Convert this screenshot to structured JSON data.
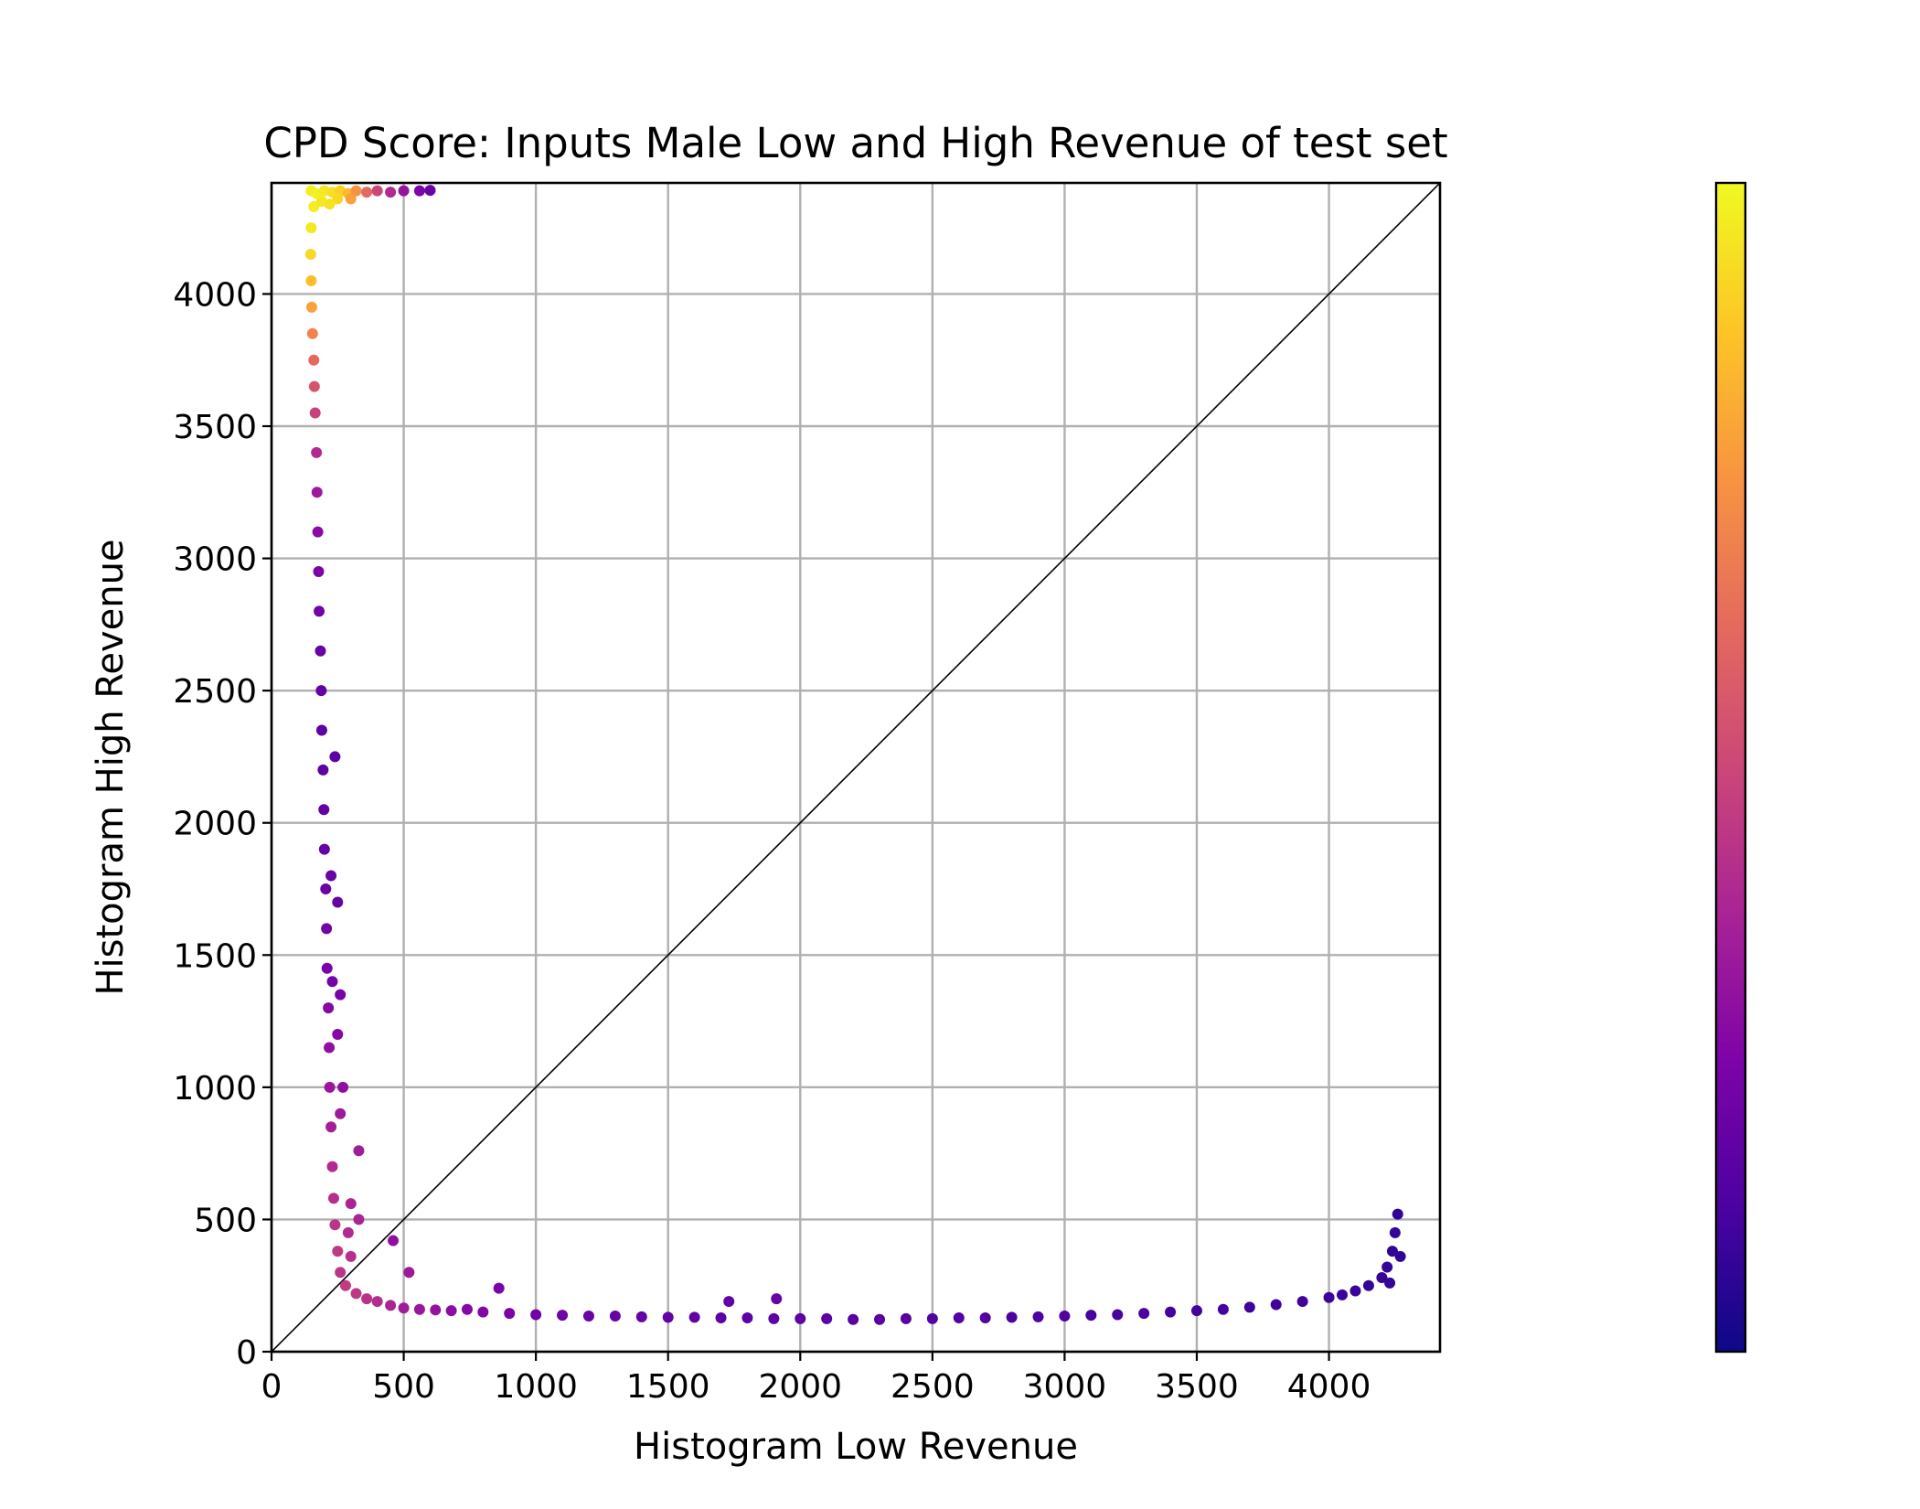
{
  "chart_data": {
    "type": "scatter",
    "title": "CPD Score: Inputs Male Low and High Revenue of test set",
    "xlabel": "Histogram Low Revenue",
    "ylabel": "Histogram High Revenue",
    "xlim": [
      0,
      4420
    ],
    "ylim": [
      0,
      4420
    ],
    "xticks": [
      0,
      500,
      1000,
      1500,
      2000,
      2500,
      3000,
      3500,
      4000
    ],
    "yticks": [
      0,
      500,
      1000,
      1500,
      2000,
      2500,
      3000,
      3500,
      4000
    ],
    "grid": true,
    "reference_line": {
      "x": [
        0,
        4420
      ],
      "y": [
        0,
        4420
      ],
      "color": "#000000"
    },
    "colormap": "plasma",
    "colorbar": true,
    "series": [
      {
        "points": [
          {
            "x": 150,
            "y": 4390,
            "c": 0.97
          },
          {
            "x": 170,
            "y": 4380,
            "c": 0.98
          },
          {
            "x": 200,
            "y": 4390,
            "c": 0.96
          },
          {
            "x": 230,
            "y": 4385,
            "c": 0.94
          },
          {
            "x": 260,
            "y": 4390,
            "c": 0.9
          },
          {
            "x": 290,
            "y": 4380,
            "c": 0.84
          },
          {
            "x": 320,
            "y": 4390,
            "c": 0.74
          },
          {
            "x": 360,
            "y": 4385,
            "c": 0.62
          },
          {
            "x": 400,
            "y": 4390,
            "c": 0.5
          },
          {
            "x": 450,
            "y": 4385,
            "c": 0.4
          },
          {
            "x": 500,
            "y": 4390,
            "c": 0.32
          },
          {
            "x": 560,
            "y": 4390,
            "c": 0.25
          },
          {
            "x": 600,
            "y": 4392,
            "c": 0.2
          },
          {
            "x": 160,
            "y": 4330,
            "c": 0.97
          },
          {
            "x": 190,
            "y": 4350,
            "c": 0.96
          },
          {
            "x": 250,
            "y": 4360,
            "c": 0.92
          },
          {
            "x": 300,
            "y": 4360,
            "c": 0.78
          },
          {
            "x": 220,
            "y": 4340,
            "c": 0.95
          },
          {
            "x": 150,
            "y": 4250,
            "c": 0.96
          },
          {
            "x": 148,
            "y": 4150,
            "c": 0.92
          },
          {
            "x": 150,
            "y": 4050,
            "c": 0.86
          },
          {
            "x": 152,
            "y": 3950,
            "c": 0.78
          },
          {
            "x": 155,
            "y": 3850,
            "c": 0.7
          },
          {
            "x": 160,
            "y": 3750,
            "c": 0.62
          },
          {
            "x": 162,
            "y": 3650,
            "c": 0.55
          },
          {
            "x": 165,
            "y": 3550,
            "c": 0.48
          },
          {
            "x": 170,
            "y": 3400,
            "c": 0.4
          },
          {
            "x": 172,
            "y": 3250,
            "c": 0.34
          },
          {
            "x": 175,
            "y": 3100,
            "c": 0.28
          },
          {
            "x": 178,
            "y": 2950,
            "c": 0.24
          },
          {
            "x": 180,
            "y": 2800,
            "c": 0.21
          },
          {
            "x": 185,
            "y": 2650,
            "c": 0.19
          },
          {
            "x": 188,
            "y": 2500,
            "c": 0.18
          },
          {
            "x": 190,
            "y": 2350,
            "c": 0.17
          },
          {
            "x": 195,
            "y": 2200,
            "c": 0.17
          },
          {
            "x": 198,
            "y": 2050,
            "c": 0.18
          },
          {
            "x": 200,
            "y": 1900,
            "c": 0.19
          },
          {
            "x": 205,
            "y": 1750,
            "c": 0.2
          },
          {
            "x": 208,
            "y": 1600,
            "c": 0.22
          },
          {
            "x": 210,
            "y": 1450,
            "c": 0.24
          },
          {
            "x": 215,
            "y": 1300,
            "c": 0.27
          },
          {
            "x": 218,
            "y": 1150,
            "c": 0.3
          },
          {
            "x": 220,
            "y": 1000,
            "c": 0.33
          },
          {
            "x": 225,
            "y": 850,
            "c": 0.36
          },
          {
            "x": 230,
            "y": 700,
            "c": 0.4
          },
          {
            "x": 235,
            "y": 580,
            "c": 0.42
          },
          {
            "x": 240,
            "y": 480,
            "c": 0.44
          },
          {
            "x": 250,
            "y": 380,
            "c": 0.45
          },
          {
            "x": 260,
            "y": 300,
            "c": 0.44
          },
          {
            "x": 240,
            "y": 2250,
            "c": 0.16
          },
          {
            "x": 225,
            "y": 1800,
            "c": 0.2
          },
          {
            "x": 250,
            "y": 1700,
            "c": 0.19
          },
          {
            "x": 230,
            "y": 1400,
            "c": 0.23
          },
          {
            "x": 260,
            "y": 1350,
            "c": 0.24
          },
          {
            "x": 250,
            "y": 1200,
            "c": 0.27
          },
          {
            "x": 270,
            "y": 1000,
            "c": 0.3
          },
          {
            "x": 260,
            "y": 900,
            "c": 0.34
          },
          {
            "x": 330,
            "y": 760,
            "c": 0.35
          },
          {
            "x": 300,
            "y": 560,
            "c": 0.38
          },
          {
            "x": 290,
            "y": 450,
            "c": 0.4
          },
          {
            "x": 330,
            "y": 500,
            "c": 0.38
          },
          {
            "x": 460,
            "y": 420,
            "c": 0.3
          },
          {
            "x": 300,
            "y": 360,
            "c": 0.42
          },
          {
            "x": 280,
            "y": 250,
            "c": 0.46
          },
          {
            "x": 320,
            "y": 220,
            "c": 0.45
          },
          {
            "x": 360,
            "y": 200,
            "c": 0.43
          },
          {
            "x": 400,
            "y": 190,
            "c": 0.41
          },
          {
            "x": 450,
            "y": 175,
            "c": 0.38
          },
          {
            "x": 520,
            "y": 300,
            "c": 0.34
          },
          {
            "x": 500,
            "y": 165,
            "c": 0.35
          },
          {
            "x": 560,
            "y": 160,
            "c": 0.33
          },
          {
            "x": 620,
            "y": 158,
            "c": 0.31
          },
          {
            "x": 680,
            "y": 155,
            "c": 0.29
          },
          {
            "x": 740,
            "y": 160,
            "c": 0.27
          },
          {
            "x": 800,
            "y": 150,
            "c": 0.26
          },
          {
            "x": 860,
            "y": 240,
            "c": 0.24
          },
          {
            "x": 900,
            "y": 145,
            "c": 0.24
          },
          {
            "x": 1000,
            "y": 140,
            "c": 0.22
          },
          {
            "x": 1100,
            "y": 138,
            "c": 0.21
          },
          {
            "x": 1200,
            "y": 135,
            "c": 0.2
          },
          {
            "x": 1300,
            "y": 135,
            "c": 0.19
          },
          {
            "x": 1400,
            "y": 132,
            "c": 0.19
          },
          {
            "x": 1500,
            "y": 130,
            "c": 0.18
          },
          {
            "x": 1600,
            "y": 130,
            "c": 0.18
          },
          {
            "x": 1700,
            "y": 128,
            "c": 0.17
          },
          {
            "x": 1730,
            "y": 190,
            "c": 0.18
          },
          {
            "x": 1800,
            "y": 128,
            "c": 0.17
          },
          {
            "x": 1900,
            "y": 125,
            "c": 0.17
          },
          {
            "x": 1910,
            "y": 200,
            "c": 0.19
          },
          {
            "x": 2000,
            "y": 125,
            "c": 0.16
          },
          {
            "x": 2100,
            "y": 125,
            "c": 0.16
          },
          {
            "x": 2200,
            "y": 122,
            "c": 0.15
          },
          {
            "x": 2300,
            "y": 122,
            "c": 0.15
          },
          {
            "x": 2400,
            "y": 125,
            "c": 0.15
          },
          {
            "x": 2500,
            "y": 125,
            "c": 0.14
          },
          {
            "x": 2600,
            "y": 128,
            "c": 0.14
          },
          {
            "x": 2700,
            "y": 128,
            "c": 0.14
          },
          {
            "x": 2800,
            "y": 130,
            "c": 0.13
          },
          {
            "x": 2900,
            "y": 132,
            "c": 0.13
          },
          {
            "x": 3000,
            "y": 135,
            "c": 0.13
          },
          {
            "x": 3100,
            "y": 138,
            "c": 0.12
          },
          {
            "x": 3200,
            "y": 140,
            "c": 0.12
          },
          {
            "x": 3300,
            "y": 145,
            "c": 0.12
          },
          {
            "x": 3400,
            "y": 150,
            "c": 0.11
          },
          {
            "x": 3500,
            "y": 155,
            "c": 0.11
          },
          {
            "x": 3600,
            "y": 160,
            "c": 0.11
          },
          {
            "x": 3700,
            "y": 168,
            "c": 0.1
          },
          {
            "x": 3800,
            "y": 178,
            "c": 0.1
          },
          {
            "x": 3900,
            "y": 190,
            "c": 0.1
          },
          {
            "x": 4000,
            "y": 205,
            "c": 0.09
          },
          {
            "x": 4050,
            "y": 215,
            "c": 0.09
          },
          {
            "x": 4100,
            "y": 230,
            "c": 0.09
          },
          {
            "x": 4150,
            "y": 250,
            "c": 0.08
          },
          {
            "x": 4200,
            "y": 280,
            "c": 0.08
          },
          {
            "x": 4220,
            "y": 320,
            "c": 0.08
          },
          {
            "x": 4240,
            "y": 380,
            "c": 0.07
          },
          {
            "x": 4250,
            "y": 450,
            "c": 0.07
          },
          {
            "x": 4260,
            "y": 520,
            "c": 0.07
          },
          {
            "x": 4270,
            "y": 360,
            "c": 0.07
          },
          {
            "x": 4230,
            "y": 260,
            "c": 0.08
          }
        ]
      }
    ]
  }
}
